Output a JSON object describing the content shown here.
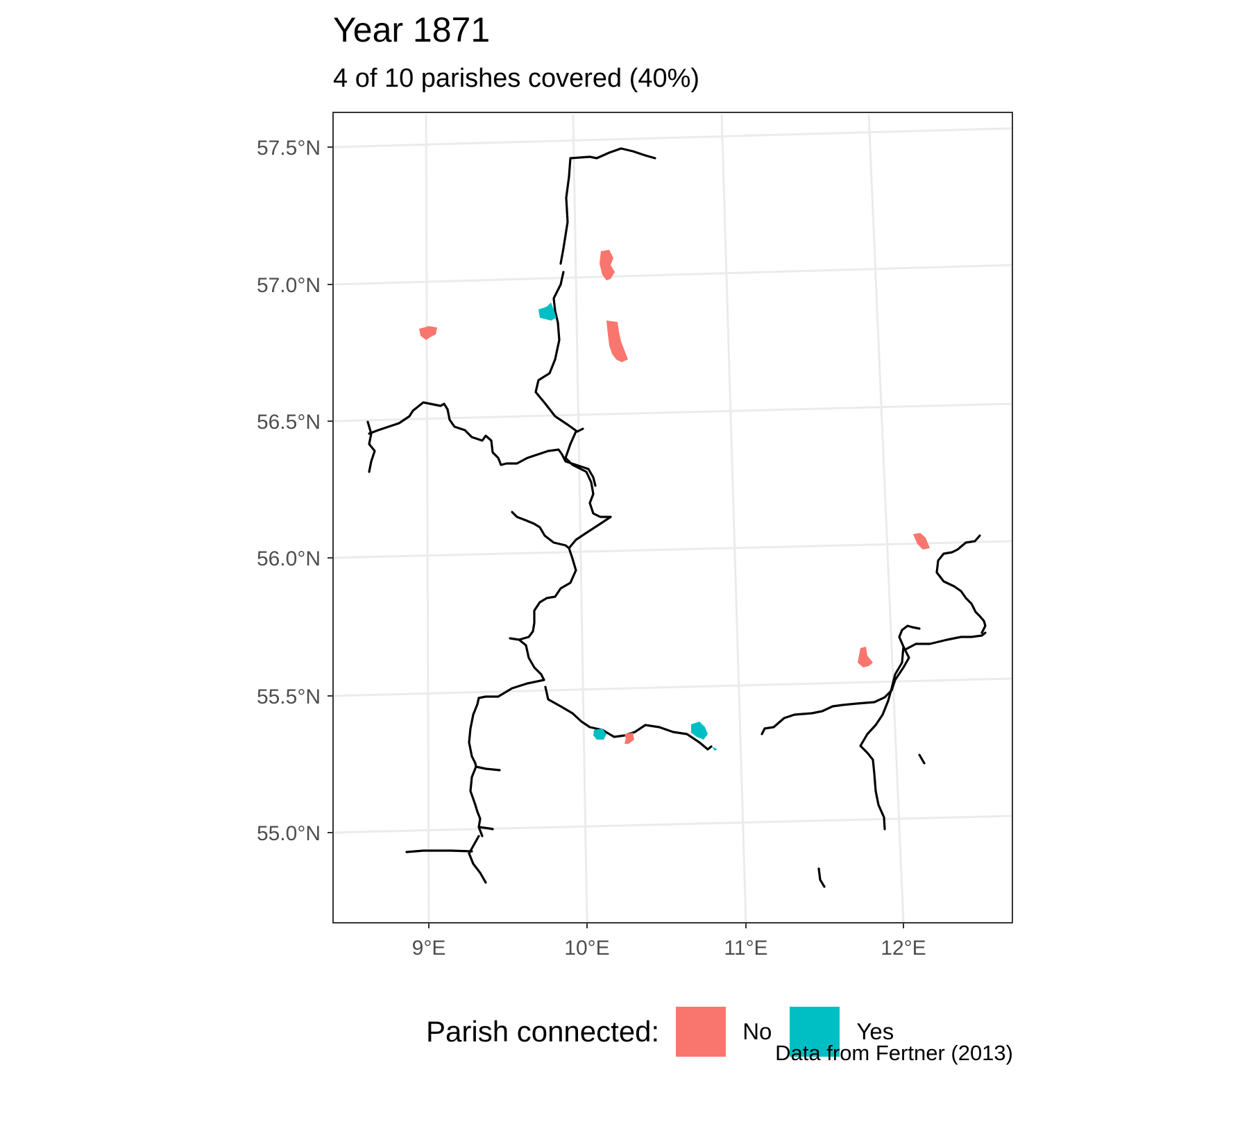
{
  "header": {
    "title": "Year 1871",
    "subtitle": "4 of 10 parishes covered (40%)"
  },
  "axes": {
    "lat_labels": [
      "57.5°N",
      "57.0°N",
      "56.5°N",
      "56.0°N",
      "55.5°N",
      "55.0°N"
    ],
    "lon_labels": [
      "9°E",
      "10°E",
      "11°E",
      "12°E"
    ]
  },
  "legend": {
    "title": "Parish connected:",
    "items": [
      {
        "label": "No",
        "color": "#F8766D"
      },
      {
        "label": "Yes",
        "color": "#00BFC4"
      }
    ]
  },
  "caption": "Data from Fertner (2013)",
  "colors": {
    "no": "#F8766D",
    "yes": "#00BFC4",
    "railway": "#000000",
    "grid": "#ebebeb",
    "panel_border": "#333333"
  }
}
